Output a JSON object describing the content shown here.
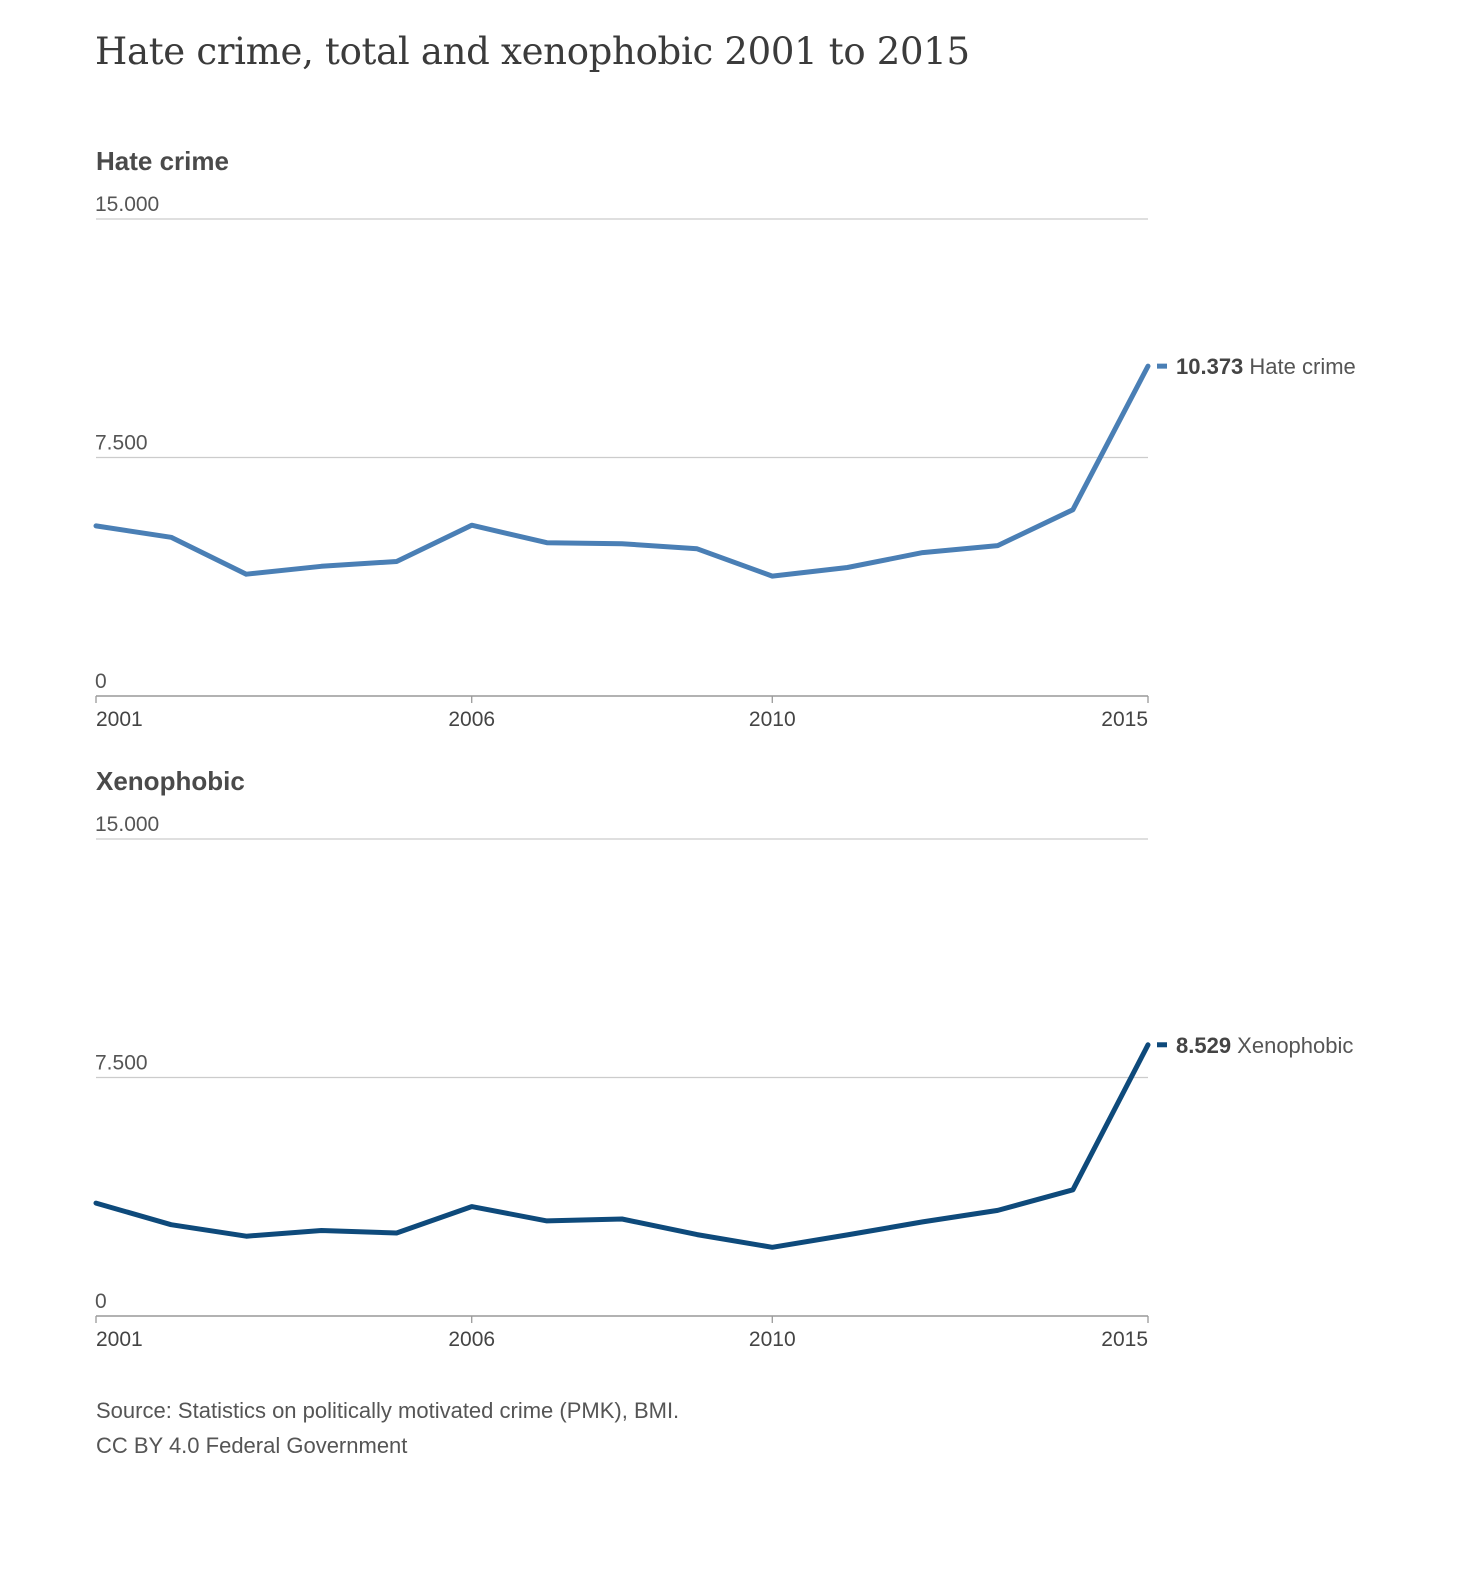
{
  "title": "Hate crime, total and xenophobic 2001 to 2015",
  "source_line1": "Source: Statistics on politically motivated crime (PMK), BMI.",
  "source_line2": "CC BY 4.0 Federal Government",
  "colors": {
    "hate": "#4a7fb5",
    "xeno": "#0e4a7b",
    "grid": "#cccccc",
    "axis": "#999999"
  },
  "chart_data": [
    {
      "type": "line",
      "title": "Hate crime",
      "series": [
        {
          "name": "Hate crime",
          "values": [
            5350,
            4990,
            3830,
            4080,
            4230,
            5370,
            4820,
            4790,
            4630,
            3770,
            4040,
            4510,
            4730,
            5860,
            10373
          ]
        }
      ],
      "x": [
        2001,
        2002,
        2003,
        2004,
        2005,
        2006,
        2007,
        2008,
        2009,
        2010,
        2011,
        2012,
        2013,
        2014,
        2015
      ],
      "xticks": [
        "2001",
        "2006",
        "2010",
        "2015"
      ],
      "yticks": [
        "0",
        "7.500",
        "15.000"
      ],
      "ylim": [
        0,
        15000
      ],
      "end_label": {
        "value": "10.373",
        "name": "Hate crime"
      },
      "grid": true
    },
    {
      "type": "line",
      "title": "Xenophobic",
      "series": [
        {
          "name": "Xenophobic",
          "values": [
            3550,
            2870,
            2510,
            2690,
            2610,
            3440,
            2990,
            3050,
            2560,
            2160,
            2550,
            2960,
            3320,
            3970,
            8529
          ]
        }
      ],
      "x": [
        2001,
        2002,
        2003,
        2004,
        2005,
        2006,
        2007,
        2008,
        2009,
        2010,
        2011,
        2012,
        2013,
        2014,
        2015
      ],
      "xticks": [
        "2001",
        "2006",
        "2010",
        "2015"
      ],
      "yticks": [
        "0",
        "7.500",
        "15.000"
      ],
      "ylim": [
        0,
        15000
      ],
      "end_label": {
        "value": "8.529",
        "name": "Xenophobic"
      },
      "grid": true
    }
  ]
}
